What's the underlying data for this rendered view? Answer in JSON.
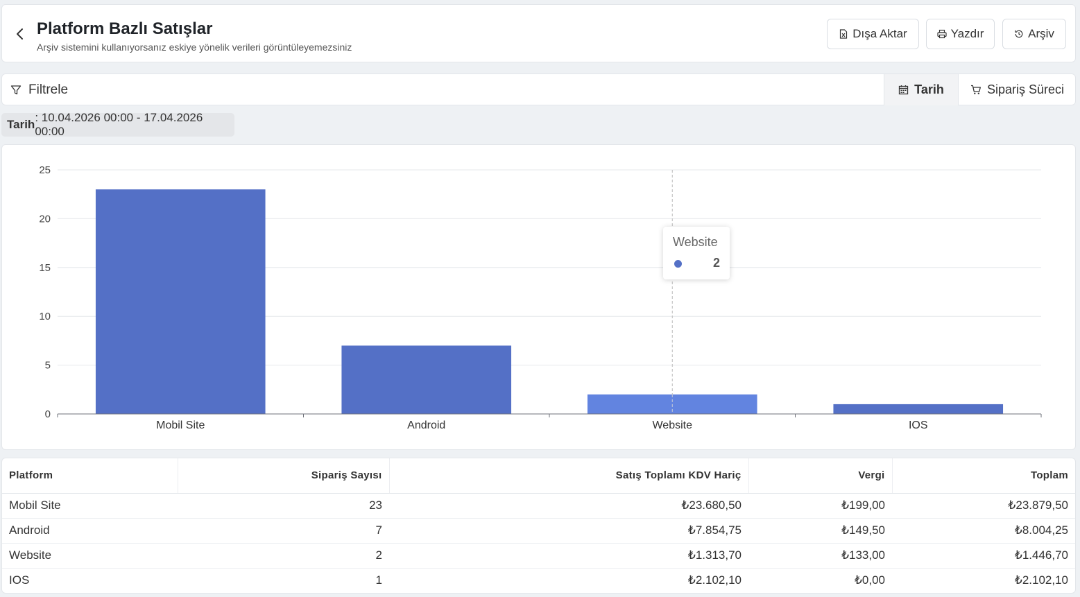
{
  "header": {
    "title": "Platform Bazlı Satışlar",
    "subtitle": "Arşiv sistemini kullanıyorsanız eskiye yönelik verileri görüntüleyemezsiniz",
    "buttons": {
      "export": "Dışa Aktar",
      "print": "Yazdır",
      "archive": "Arşiv"
    }
  },
  "filterbar": {
    "label": "Filtrele",
    "tabs": [
      {
        "label": "Tarih"
      },
      {
        "label": "Sipariş Süreci"
      }
    ]
  },
  "active_filter": {
    "key": "Tarih",
    "value": ": 10.04.2026 00:00 - 17.04.2026 00:00"
  },
  "chart_data": {
    "type": "bar",
    "categories": [
      "Mobil Site",
      "Android",
      "Website",
      "IOS"
    ],
    "values": [
      23,
      7,
      2,
      1
    ],
    "ylim": [
      0,
      25
    ],
    "yticks": [
      "0",
      "5",
      "10",
      "15",
      "20",
      "25"
    ],
    "grid": true,
    "bar_color": "#5470c6",
    "highlight_color": "#6284e0",
    "highlight_index": 2,
    "tooltip": {
      "title": "Website",
      "value": "2"
    }
  },
  "table": {
    "headers": [
      "Platform",
      "Sipariş Sayısı",
      "Satış Toplamı KDV Hariç",
      "Vergi",
      "Toplam"
    ],
    "rows": [
      [
        "Mobil Site",
        "23",
        "₺23.680,50",
        "₺199,00",
        "₺23.879,50"
      ],
      [
        "Android",
        "7",
        "₺7.854,75",
        "₺149,50",
        "₺8.004,25"
      ],
      [
        "Website",
        "2",
        "₺1.313,70",
        "₺133,00",
        "₺1.446,70"
      ],
      [
        "IOS",
        "1",
        "₺2.102,10",
        "₺0,00",
        "₺2.102,10"
      ]
    ]
  }
}
